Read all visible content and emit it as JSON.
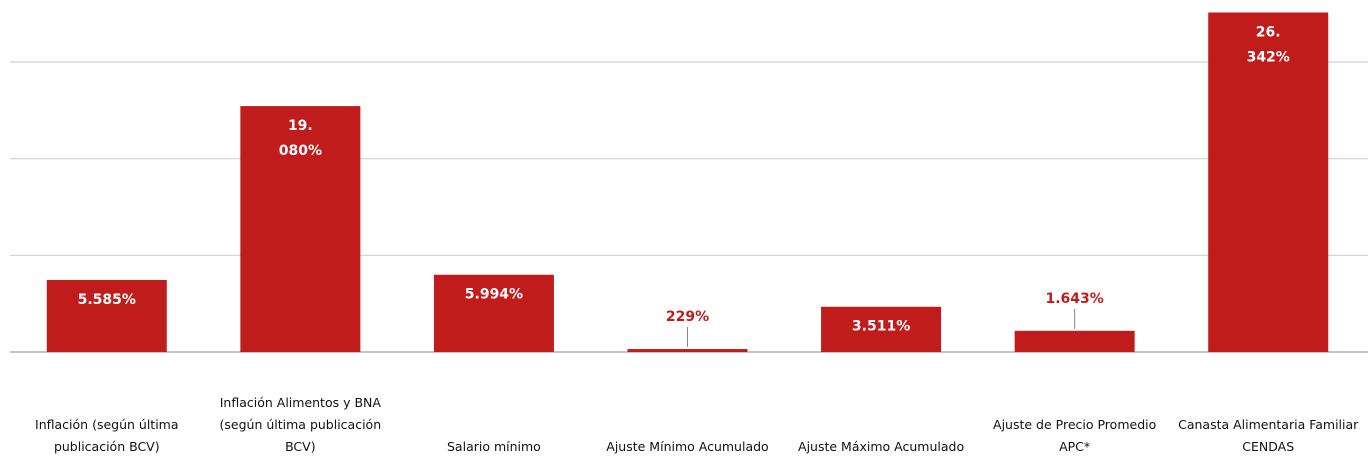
{
  "chart_data": {
    "type": "bar",
    "categories": [
      "Inflación (según última publicación BCV)",
      "Inflación Alimentos y BNA (según última publicación BCV)",
      "Salario mínimo",
      "Ajuste Mínimo Acumulado",
      "Ajuste Máximo Acumulado",
      "Ajuste de Precio Promedio APC*",
      "Canasta Alimentaria Familiar CENDAS"
    ],
    "values": [
      5585,
      19080,
      5994,
      229,
      3511,
      1643,
      26342
    ],
    "value_labels": [
      "5.585%",
      "19.080%",
      "5.994%",
      "229%",
      "3.511%",
      "1.643%",
      "26.342%"
    ],
    "color": "#c01c1c",
    "ylim": [
      0,
      27000
    ],
    "yticks": [
      0,
      7500,
      15000,
      22500
    ],
    "grid": true
  }
}
